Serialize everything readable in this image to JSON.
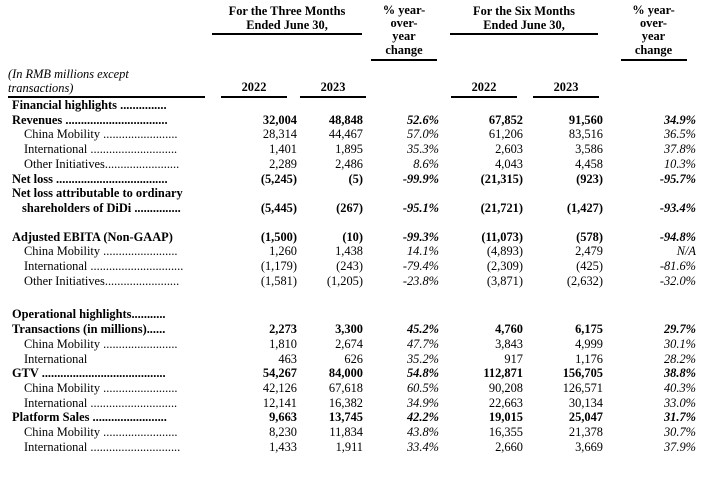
{
  "header": {
    "three_months": {
      "line1": "For the Three Months",
      "line2": "Ended June 30,"
    },
    "six_months": {
      "line1": "For the Six Months",
      "line2": "Ended June 30,"
    },
    "pct_lines": [
      "% year-",
      "over-",
      "year",
      "change"
    ],
    "note_line1": "(In RMB millions except",
    "note_line2": "transactions)",
    "years": [
      "2022",
      "2023",
      "2022",
      "2023"
    ]
  },
  "columns": [
    "label",
    "2022 (3M)",
    "2023 (3M)",
    "% year-over-year change (3M)",
    "2022 (6M)",
    "2023 (6M)",
    "% year-over-year change (6M)"
  ],
  "rows": [
    {
      "label": "Financial highlights ...............",
      "indent": 0,
      "bold": true,
      "values": [
        "",
        "",
        "",
        "",
        "",
        ""
      ]
    },
    {
      "label": "Revenues .................................",
      "indent": 0,
      "bold": true,
      "values": [
        "32,004",
        "48,848",
        "52.6%",
        "67,852",
        "91,560",
        "34.9%"
      ]
    },
    {
      "label": "China Mobility ........................",
      "indent": 1,
      "bold": false,
      "values": [
        "28,314",
        "44,467",
        "57.0%",
        "61,206",
        "83,516",
        "36.5%"
      ]
    },
    {
      "label": "International ............................",
      "indent": 1,
      "bold": false,
      "values": [
        "1,401",
        "1,895",
        "35.3%",
        "2,603",
        "3,586",
        "37.8%"
      ]
    },
    {
      "label": "Other Initiatives........................",
      "indent": 1,
      "bold": false,
      "values": [
        "2,289",
        "2,486",
        "8.6%",
        "4,043",
        "4,458",
        "10.3%"
      ]
    },
    {
      "label": "Net loss ....................................",
      "indent": 0,
      "bold": true,
      "values": [
        "(5,245)",
        "(5)",
        "-99.9%",
        "(21,315)",
        "(923)",
        "-95.7%"
      ]
    },
    {
      "label": "Net loss attributable to ordinary",
      "label2": "shareholders of DiDi ...............",
      "indent": 0,
      "bold": true,
      "values": [
        "(5,445)",
        "(267)",
        "-95.1%",
        "(21,721)",
        "(1,427)",
        "-93.4%"
      ]
    },
    {
      "spacer": true,
      "height": 14
    },
    {
      "label": "Adjusted EBITA (Non-GAAP)",
      "indent": 0,
      "bold": true,
      "values": [
        "(1,500)",
        "(10)",
        "-99.3%",
        "(11,073)",
        "(578)",
        "-94.8%"
      ]
    },
    {
      "label": "China Mobility ........................",
      "indent": 1,
      "bold": false,
      "values": [
        "1,260",
        "1,438",
        "14.1%",
        "(4,893)",
        "2,479",
        "N/A"
      ]
    },
    {
      "label": "International ..............................",
      "indent": 1,
      "bold": false,
      "values": [
        "(1,179)",
        "(243)",
        "-79.4%",
        "(2,309)",
        "(425)",
        "-81.6%"
      ]
    },
    {
      "label": "Other Initiatives........................",
      "indent": 1,
      "bold": false,
      "values": [
        "(1,581)",
        "(1,205)",
        "-23.8%",
        "(3,871)",
        "(2,632)",
        "-32.0%"
      ]
    },
    {
      "spacer": true,
      "height": 19
    },
    {
      "label": "Operational highlights...........",
      "indent": 0,
      "bold": true,
      "values": [
        "",
        "",
        "",
        "",
        "",
        ""
      ]
    },
    {
      "label": "Transactions (in millions)......",
      "indent": 0,
      "bold": true,
      "values": [
        "2,273",
        "3,300",
        "45.2%",
        "4,760",
        "6,175",
        "29.7%"
      ]
    },
    {
      "label": "China Mobility ........................",
      "indent": 1,
      "bold": false,
      "values": [
        "1,810",
        "2,674",
        "47.7%",
        "3,843",
        "4,999",
        "30.1%"
      ]
    },
    {
      "label": "International",
      "indent": 1,
      "bold": false,
      "values": [
        "463",
        "626",
        "35.2%",
        "917",
        "1,176",
        "28.2%"
      ]
    },
    {
      "label": "GTV ........................................",
      "indent": 0,
      "bold": true,
      "values": [
        "54,267",
        "84,000",
        "54.8%",
        "112,871",
        "156,705",
        "38.8%"
      ]
    },
    {
      "label": "China Mobility ........................",
      "indent": 1,
      "bold": false,
      "values": [
        "42,126",
        "67,618",
        "60.5%",
        "90,208",
        "126,571",
        "40.3%"
      ]
    },
    {
      "label": "International ............................",
      "indent": 1,
      "bold": false,
      "values": [
        "12,141",
        "16,382",
        "34.9%",
        "22,663",
        "30,134",
        "33.0%"
      ]
    },
    {
      "label": "Platform Sales ........................",
      "indent": 0,
      "bold": true,
      "values": [
        "9,663",
        "13,745",
        "42.2%",
        "19,015",
        "25,047",
        "31.7%"
      ]
    },
    {
      "label": "China Mobility ........................",
      "indent": 1,
      "bold": false,
      "values": [
        "8,230",
        "11,834",
        "43.8%",
        "16,355",
        "21,378",
        "30.7%"
      ]
    },
    {
      "label": "International .............................",
      "indent": 1,
      "bold": false,
      "values": [
        "1,433",
        "1,911",
        "33.4%",
        "2,660",
        "3,669",
        "37.9%"
      ]
    }
  ],
  "colors": {
    "text": "#000000",
    "background": "#ffffff",
    "rule": "#000000"
  }
}
